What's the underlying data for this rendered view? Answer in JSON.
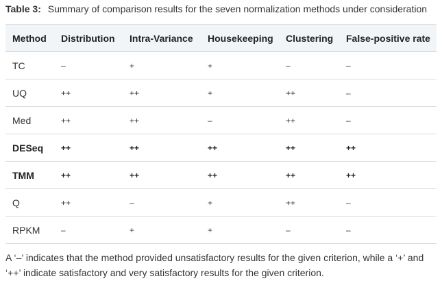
{
  "caption": {
    "label": "Table 3:",
    "text": "Summary of comparison results for the seven normalization methods under consideration"
  },
  "table": {
    "headers": [
      "Method",
      "Distribution",
      "Intra-Variance",
      "Housekeeping",
      "Clustering",
      "False-positive rate"
    ],
    "rows": [
      {
        "method": "TC",
        "bold": false,
        "cells": [
          "–",
          "+",
          "+",
          "–",
          "–"
        ]
      },
      {
        "method": "UQ",
        "bold": false,
        "cells": [
          "++",
          "++",
          "+",
          "++",
          "–"
        ]
      },
      {
        "method": "Med",
        "bold": false,
        "cells": [
          "++",
          "++",
          "–",
          "++",
          "–"
        ]
      },
      {
        "method": "DESeq",
        "bold": true,
        "cells": [
          "++",
          "++",
          "++",
          "++",
          "++"
        ]
      },
      {
        "method": "TMM",
        "bold": true,
        "cells": [
          "++",
          "++",
          "++",
          "++",
          "++"
        ]
      },
      {
        "method": "Q",
        "bold": false,
        "cells": [
          "++",
          "–",
          "+",
          "++",
          "–"
        ]
      },
      {
        "method": "RPKM",
        "bold": false,
        "cells": [
          "–",
          "+",
          "+",
          "–",
          "–"
        ]
      }
    ]
  },
  "footnote": "A ‘–’ indicates that the method provided unsatisfactory results for the given criterion, while a ‘+’ and ‘++’ indicate satisfactory and very satisfactory results for the given criterion."
}
